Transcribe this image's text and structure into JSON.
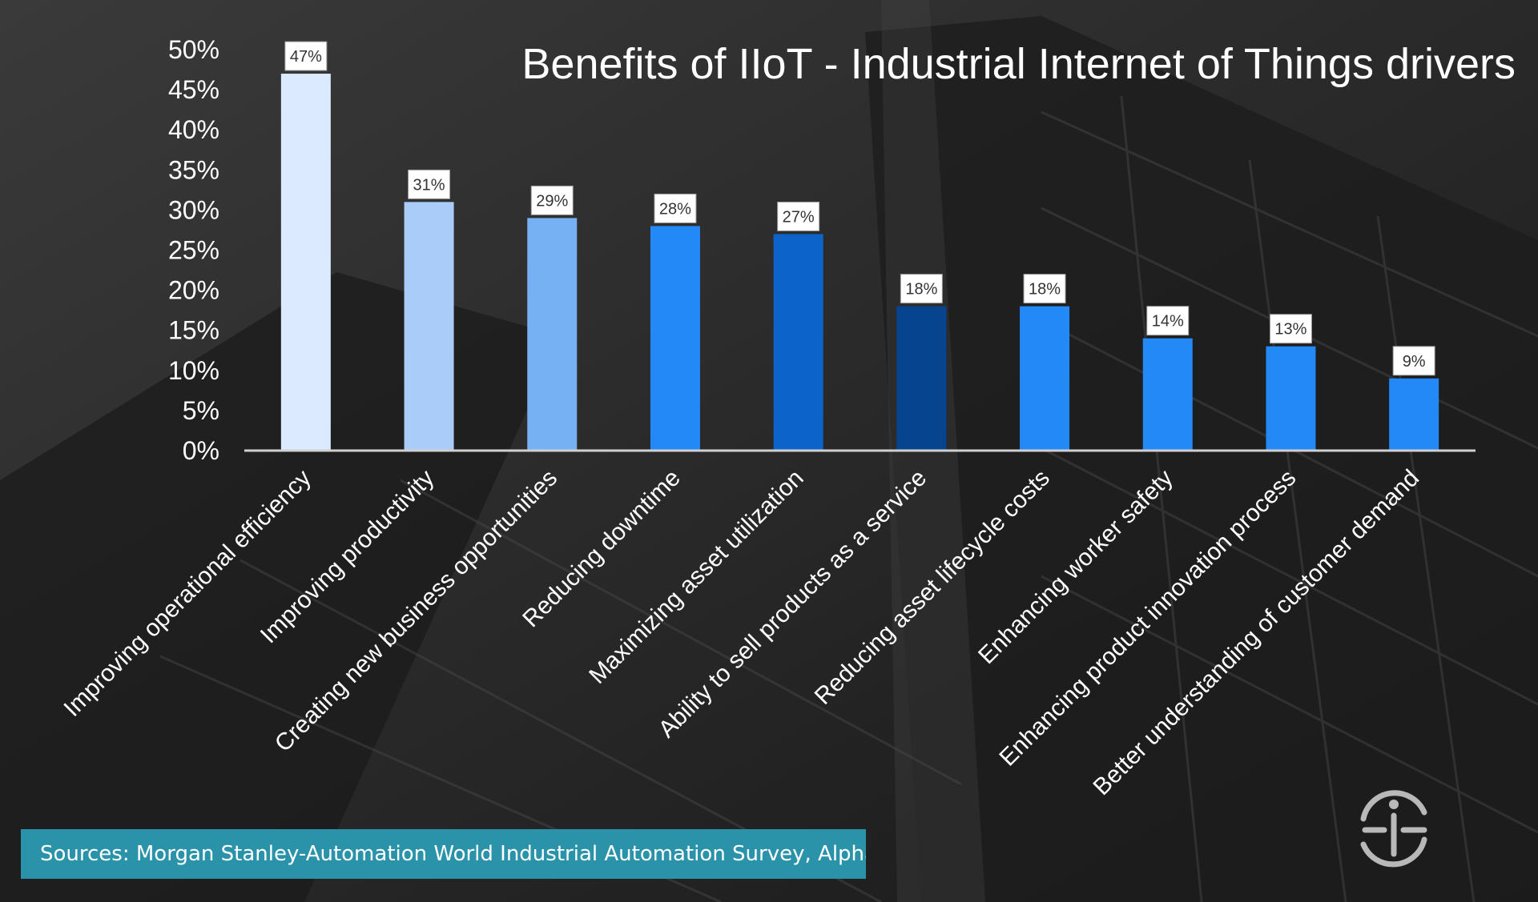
{
  "chart_data": {
    "type": "bar",
    "title": "Benefits of IIoT - Industrial Internet of Things drivers",
    "categories": [
      "Improving operational efficiency",
      "Improving productivity",
      "Creating new business opportunities",
      "Reducing downtime",
      "Maximizing asset utilization",
      "Ability to sell products as a service",
      "Reducing asset lifecycle costs",
      "Enhancing worker safety",
      "Enhancing product innovation process",
      "Better understanding of customer demand"
    ],
    "values": [
      47,
      31,
      29,
      28,
      27,
      18,
      18,
      14,
      13,
      9
    ],
    "data_labels": [
      "47%",
      "31%",
      "29%",
      "28%",
      "27%",
      "18%",
      "18%",
      "14%",
      "13%",
      "9%"
    ],
    "bar_colors": [
      "#dbeafe",
      "#a9cdf8",
      "#76b1f3",
      "#2289f6",
      "#0c63ca",
      "#07448f",
      "#2289f6",
      "#2289f6",
      "#2289f6",
      "#2289f6"
    ],
    "ylim": [
      0,
      50
    ],
    "yticks": [
      "0%",
      "5%",
      "10%",
      "15%",
      "20%",
      "25%",
      "30%",
      "35%",
      "40%",
      "45%",
      "50%"
    ],
    "xlabel": "",
    "ylabel": "",
    "grid": false,
    "legend": "none"
  },
  "footer": {
    "source_text": "Sources: Morgan Stanley-Automation World Industrial Automation Survey, AlphaWise",
    "source_bg_color": "#2a93a9"
  },
  "logo": {
    "icon": "si-logo-icon"
  }
}
